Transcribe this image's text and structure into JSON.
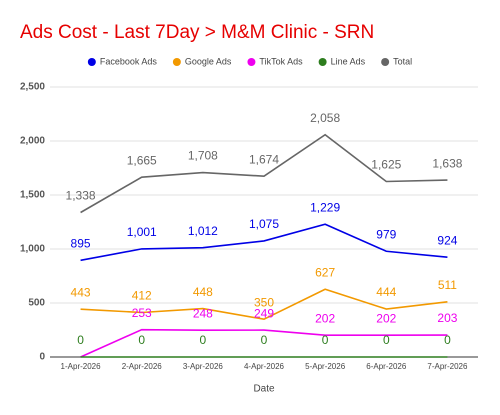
{
  "chart_data": {
    "type": "line",
    "title": "Ads Cost - Last 7Day > M&M Clinic - SRN",
    "x_label": "Date",
    "categories": [
      "1-Apr-2026",
      "2-Apr-2026",
      "3-Apr-2026",
      "4-Apr-2026",
      "5-Apr-2026",
      "6-Apr-2026",
      "7-Apr-2026"
    ],
    "series": [
      {
        "name": "Facebook Ads",
        "color": "#0000e6",
        "values": [
          895,
          1001,
          1012,
          1075,
          1229,
          979,
          924
        ],
        "value_labels": [
          "895",
          "1,001",
          "1,012",
          "1,075",
          "1,229",
          "979",
          "924"
        ]
      },
      {
        "name": "Google Ads",
        "color": "#f29900",
        "values": [
          443,
          412,
          448,
          350,
          627,
          444,
          511
        ]
      },
      {
        "name": "TikTok Ads",
        "color": "#ee00ee",
        "values": [
          0,
          253,
          248,
          249,
          202,
          202,
          203
        ],
        "value_labels": [
          null,
          "253",
          "248",
          "249",
          "202",
          "202",
          "203"
        ]
      },
      {
        "name": "Line Ads",
        "color": "#2d7d1e",
        "values": [
          0,
          0,
          0,
          0,
          0,
          0,
          0
        ]
      },
      {
        "name": "Total",
        "color": "#666666",
        "values": [
          1338,
          1665,
          1708,
          1674,
          2058,
          1625,
          1638
        ],
        "value_labels": [
          "1,338",
          "1,665",
          "1,708",
          "1,674",
          "2,058",
          "1,625",
          "1,638"
        ]
      }
    ],
    "ylim": [
      0,
      2500
    ],
    "yticks": [
      0,
      500,
      {
        "value": 1000,
        "label": "1,000"
      },
      {
        "value": 1500,
        "label": "1,500"
      },
      {
        "value": 2000,
        "label": "2,000"
      },
      {
        "value": 2500,
        "label": "2,500"
      }
    ],
    "grid": true
  }
}
